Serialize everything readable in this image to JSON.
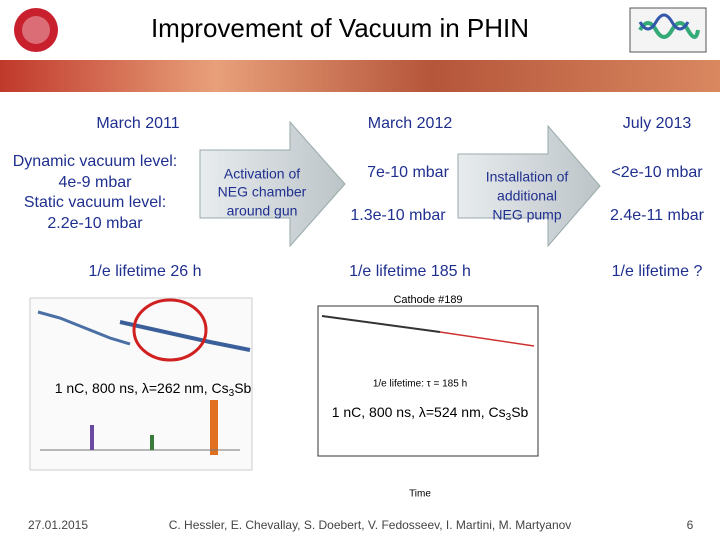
{
  "header": {
    "title": "Improvement of Vacuum in PHIN"
  },
  "columns": [
    {
      "date": "March 2011",
      "lines": [
        "Dynamic vacuum level:",
        "4e-9 mbar",
        "Static vacuum level:",
        "2.2e-10 mbar"
      ],
      "lifetime": "1/e lifetime 26 h"
    },
    {
      "date": "March 2012",
      "lines": [
        "7e-10 mbar",
        "1.3e-10 mbar"
      ],
      "lifetime": "1/e lifetime 185 h"
    },
    {
      "date": "July 2013",
      "lines": [
        "<2e-10 mbar",
        "2.4e-11 mbar"
      ],
      "lifetime": "1/e lifetime ?"
    }
  ],
  "arrows": [
    {
      "lines": [
        "Activation of",
        "NEG chamber",
        "around gun"
      ]
    },
    {
      "lines": [
        "Installation of",
        "additional",
        "NEG pump"
      ]
    }
  ],
  "plots": [
    {
      "caption": [
        "1 nC, 800 ns, λ=262 nm, Cs",
        "3",
        "Sb"
      ]
    },
    {
      "title": "Cathode #189",
      "annotation": "1/e lifetime: τ = 185 h",
      "x_label": "Time",
      "caption": [
        "1 nC, 800 ns, λ=524 nm, Cs",
        "3",
        "Sb"
      ]
    }
  ],
  "footer": {
    "date": "27.01.2015",
    "authors": "C. Hessler, E. Chevallay, S. Doebert, V. Fedosseev, I. Martini, M. Martyanov",
    "page": "6"
  }
}
